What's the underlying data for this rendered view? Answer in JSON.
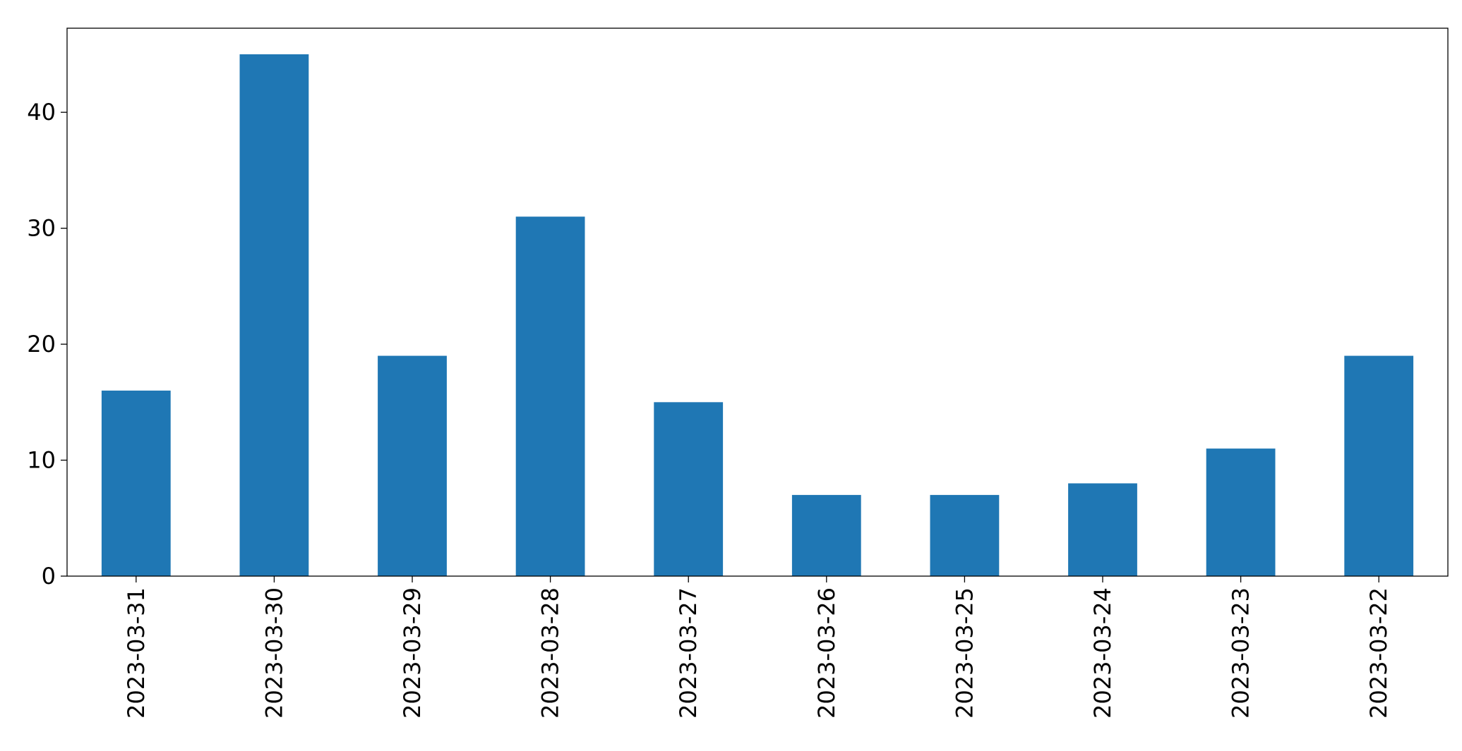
{
  "chart_data": {
    "type": "bar",
    "categories": [
      "2023-03-31",
      "2023-03-30",
      "2023-03-29",
      "2023-03-28",
      "2023-03-27",
      "2023-03-26",
      "2023-03-25",
      "2023-03-24",
      "2023-03-23",
      "2023-03-22"
    ],
    "values": [
      16,
      45,
      19,
      31,
      15,
      7,
      7,
      8,
      11,
      19
    ],
    "color": "#1f77b4",
    "ylim": [
      0,
      47.25
    ],
    "yticks": [
      0,
      10,
      20,
      30,
      40
    ],
    "grid": false
  }
}
